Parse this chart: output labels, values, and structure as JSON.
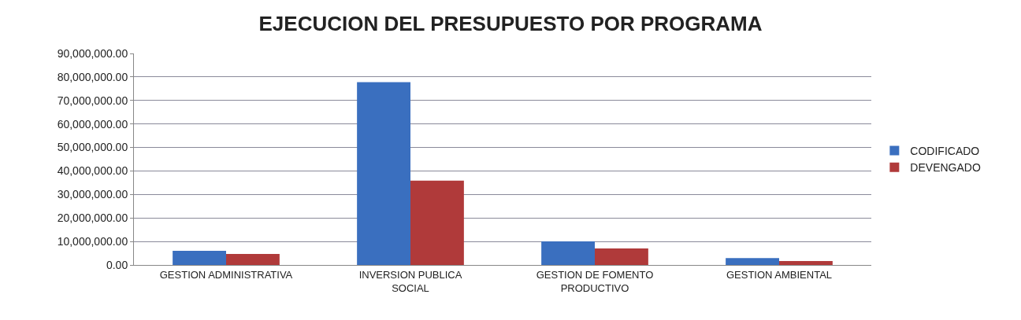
{
  "chart_data": {
    "type": "bar",
    "title": "EJECUCION DEL PRESUPUESTO POR PROGRAMA",
    "categories": [
      "GESTION ADMINISTRATIVA",
      "INVERSION PUBLICA SOCIAL",
      "GESTION DE FOMENTO PRODUCTIVO",
      "GESTION AMBIENTAL"
    ],
    "series": [
      {
        "name": "CODIFICADO",
        "color": "#3a6fbf",
        "values": [
          6000000,
          77800000,
          10000000,
          2900000
        ]
      },
      {
        "name": "DEVENGADO",
        "color": "#b03a3a",
        "values": [
          4700000,
          35900000,
          7000000,
          1700000
        ]
      }
    ],
    "ylim": [
      0,
      90000000
    ],
    "yticks": [
      {
        "value": 0,
        "label": "0.00"
      },
      {
        "value": 10000000,
        "label": "10,000,000.00"
      },
      {
        "value": 20000000,
        "label": "20,000,000.00"
      },
      {
        "value": 30000000,
        "label": "30,000,000.00"
      },
      {
        "value": 40000000,
        "label": "40,000,000.00"
      },
      {
        "value": 50000000,
        "label": "50,000,000.00"
      },
      {
        "value": 60000000,
        "label": "60,000,000.00"
      },
      {
        "value": 70000000,
        "label": "70,000,000.00"
      },
      {
        "value": 80000000,
        "label": "80,000,000.00"
      },
      {
        "value": 90000000,
        "label": "90,000,000.00"
      }
    ],
    "grid": "y",
    "legend": "right"
  }
}
